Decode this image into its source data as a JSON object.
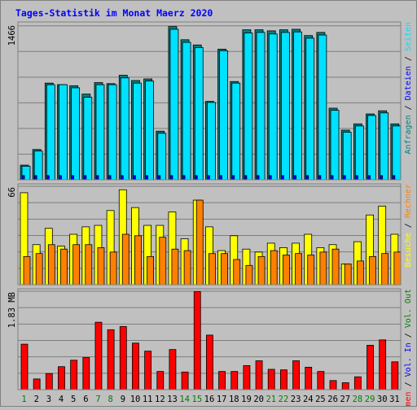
{
  "chart_data": [
    {
      "type": "bar",
      "title": "Tages-Statistik im Monat Maerz 2020",
      "y_max_label": "1466",
      "ylim": [
        0,
        1466
      ],
      "categories": [
        "1",
        "2",
        "3",
        "4",
        "5",
        "6",
        "7",
        "8",
        "9",
        "10",
        "11",
        "12",
        "13",
        "14",
        "15",
        "16",
        "17",
        "18",
        "19",
        "20",
        "21",
        "22",
        "23",
        "24",
        "25",
        "26",
        "27",
        "28",
        "29",
        "30",
        "31"
      ],
      "weekend_days": [
        "1",
        "7",
        "8",
        "14",
        "15",
        "21",
        "22",
        "28",
        "29"
      ],
      "series": [
        {
          "name": "Anfragen",
          "color": "#008080",
          "values": [
            140,
            290,
            925,
            910,
            900,
            820,
            930,
            920,
            1000,
            950,
            965,
            465,
            1466,
            1340,
            1290,
            750,
            1250,
            940,
            1435,
            1435,
            1425,
            1435,
            1440,
            1380,
            1410,
            685,
            475,
            535,
            630,
            660,
            535
          ]
        },
        {
          "name": "Dateien",
          "color": "#0000ff",
          "values": [
            40,
            40,
            40,
            40,
            40,
            40,
            40,
            40,
            40,
            40,
            40,
            40,
            40,
            40,
            40,
            40,
            40,
            40,
            40,
            40,
            40,
            40,
            40,
            40,
            40,
            40,
            40,
            40,
            40,
            40,
            40
          ]
        },
        {
          "name": "Seiten",
          "color": "#00e0ff",
          "values": [
            130,
            275,
            910,
            910,
            880,
            790,
            910,
            910,
            975,
            925,
            945,
            445,
            1440,
            1315,
            1265,
            740,
            1235,
            925,
            1405,
            1410,
            1395,
            1410,
            1415,
            1355,
            1385,
            665,
            455,
            515,
            615,
            640,
            515
          ]
        }
      ],
      "legend": [
        "Anfragen",
        "Dateien",
        "Seiten"
      ]
    },
    {
      "type": "bar",
      "y_max_label": "66",
      "ylim": [
        0,
        66
      ],
      "categories": [
        "1",
        "2",
        "3",
        "4",
        "5",
        "6",
        "7",
        "8",
        "9",
        "10",
        "11",
        "12",
        "13",
        "14",
        "15",
        "16",
        "17",
        "18",
        "19",
        "20",
        "21",
        "22",
        "23",
        "24",
        "25",
        "26",
        "27",
        "28",
        "29",
        "30",
        "31"
      ],
      "series": [
        {
          "name": "Besuche",
          "color": "#ffff00",
          "values": [
            62,
            27,
            38,
            26,
            34,
            39,
            40,
            50,
            64,
            52,
            40,
            40,
            49,
            31,
            57,
            39,
            23,
            33,
            24,
            22,
            28,
            25,
            28,
            34,
            25,
            27,
            14,
            29,
            47,
            53,
            34
          ]
        },
        {
          "name": "Rechner",
          "color": "#ff8000",
          "values": [
            19,
            21,
            27,
            24,
            27,
            27,
            25,
            22,
            34,
            33,
            19,
            32,
            24,
            23,
            57,
            21,
            21,
            17,
            13,
            19,
            23,
            20,
            21,
            20,
            22,
            24,
            14,
            16,
            19,
            21,
            22
          ]
        }
      ],
      "legend": [
        "Besuche",
        "Rechner"
      ]
    },
    {
      "type": "bar",
      "y_max_label": "1.83 MB",
      "ylim": [
        0,
        1.83
      ],
      "categories": [
        "1",
        "2",
        "3",
        "4",
        "5",
        "6",
        "7",
        "8",
        "9",
        "10",
        "11",
        "12",
        "13",
        "14",
        "15",
        "16",
        "17",
        "18",
        "19",
        "20",
        "21",
        "22",
        "23",
        "24",
        "25",
        "26",
        "27",
        "28",
        "29",
        "30",
        "31"
      ],
      "series": [
        {
          "name": "Volumen",
          "color": "#ff0000",
          "values": [
            0.85,
            0.2,
            0.3,
            0.43,
            0.55,
            0.6,
            1.26,
            1.12,
            1.18,
            0.87,
            0.72,
            0.34,
            0.75,
            0.33,
            1.83,
            1.02,
            0.34,
            0.34,
            0.45,
            0.54,
            0.38,
            0.37,
            0.54,
            0.42,
            0.34,
            0.17,
            0.13,
            0.24,
            0.83,
            0.93,
            0.52
          ]
        }
      ],
      "legend": [
        "Volumen",
        "Vol. In",
        "Vol. Out"
      ]
    }
  ],
  "right_labels": {
    "top": [
      {
        "text": "Anfragen",
        "color": "#008080"
      },
      {
        "text": " / ",
        "color": "#000000"
      },
      {
        "text": "Dateien",
        "color": "#0000ff"
      },
      {
        "text": " / ",
        "color": "#000000"
      },
      {
        "text": "Seiten",
        "color": "#00e0ff"
      }
    ],
    "middle": [
      {
        "text": "Besuche",
        "color": "#ffff00"
      },
      {
        "text": " / ",
        "color": "#000000"
      },
      {
        "text": "Rechner",
        "color": "#ff8000"
      }
    ],
    "bottom": [
      {
        "text": "Volumen",
        "color": "#ff0000"
      },
      {
        "text": " / ",
        "color": "#000000"
      },
      {
        "text": "Vol. In",
        "color": "#0000ff"
      },
      {
        "text": " / ",
        "color": "#000000"
      },
      {
        "text": "Vol. Out",
        "color": "#008000"
      }
    ]
  },
  "colors": {
    "background": "#c0c0c0",
    "title": "#0000ff",
    "weekday_label": "#000000",
    "weekend_label": "#008000",
    "grid": "#000000"
  }
}
